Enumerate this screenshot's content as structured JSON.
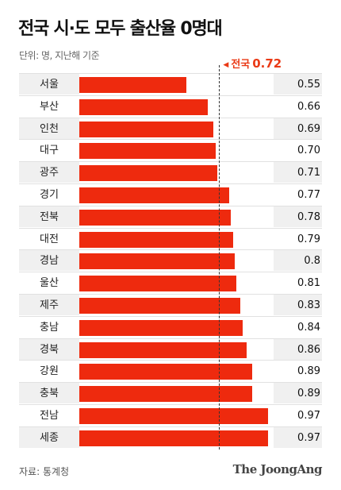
{
  "header": {
    "title": "전국 시·도 모두 출산율 0명대",
    "unit": "단위: 명, 지난해 기준"
  },
  "reference": {
    "label": "전국",
    "value": 0.72,
    "value_label": "0.72"
  },
  "footer": {
    "source": "자료: 통계청",
    "brand": "The JoongAng"
  },
  "colors": {
    "bar": "#ee2a0e",
    "reference": "#ea3a16"
  },
  "chart_data": {
    "type": "bar",
    "orientation": "horizontal",
    "title": "전국 시·도 모두 출산율 0명대",
    "xlim": [
      0,
      1.0
    ],
    "categories": [
      "서울",
      "부산",
      "인천",
      "대구",
      "광주",
      "경기",
      "전북",
      "대전",
      "경남",
      "울산",
      "제주",
      "충남",
      "경북",
      "강원",
      "충북",
      "전남",
      "세종"
    ],
    "values": [
      0.55,
      0.66,
      0.69,
      0.7,
      0.71,
      0.77,
      0.78,
      0.79,
      0.8,
      0.81,
      0.83,
      0.84,
      0.86,
      0.89,
      0.89,
      0.97,
      0.97
    ],
    "value_labels": [
      "0.55",
      "0.66",
      "0.69",
      "0.70",
      "0.71",
      "0.77",
      "0.78",
      "0.79",
      "0.8",
      "0.81",
      "0.83",
      "0.84",
      "0.86",
      "0.89",
      "0.89",
      "0.97",
      "0.97"
    ],
    "reference_line": {
      "label": "전국",
      "value": 0.72
    }
  }
}
